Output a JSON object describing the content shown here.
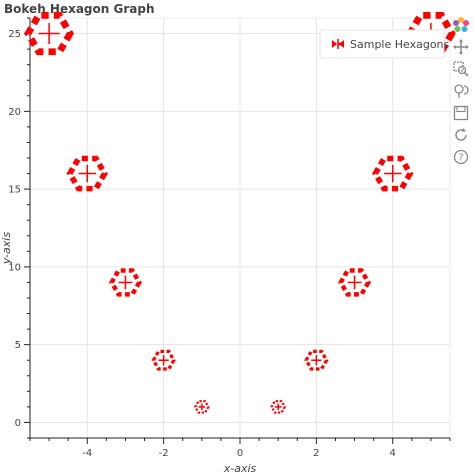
{
  "title": "Bokeh Hexagon Graph",
  "toolbar": {
    "tools": [
      "bokeh-logo-icon",
      "pan-icon",
      "box-zoom-icon",
      "wheel-zoom-icon",
      "save-icon",
      "reset-icon",
      "help-icon"
    ]
  },
  "chart_data": {
    "type": "scatter",
    "title": "Bokeh Hexagon Graph",
    "xlabel": "x-axis",
    "ylabel": "y-axis",
    "xlim": [
      -5.5,
      5.5
    ],
    "ylim": [
      -1,
      26
    ],
    "x_ticks": [
      -4,
      -2,
      0,
      2,
      4
    ],
    "y_ticks": [
      0,
      5,
      10,
      15,
      20,
      25
    ],
    "grid": true,
    "legend": {
      "position": "top-right",
      "entries": [
        "Sample Hexagons"
      ]
    },
    "series": [
      {
        "name": "Sample Hexagons",
        "marker": "hex",
        "color": "#ff0000",
        "x": [
          -5,
          -4,
          -3,
          -2,
          -1,
          1,
          2,
          3,
          4,
          5
        ],
        "y": [
          25,
          16,
          9,
          4,
          1,
          1,
          4,
          9,
          16,
          25
        ]
      }
    ]
  }
}
